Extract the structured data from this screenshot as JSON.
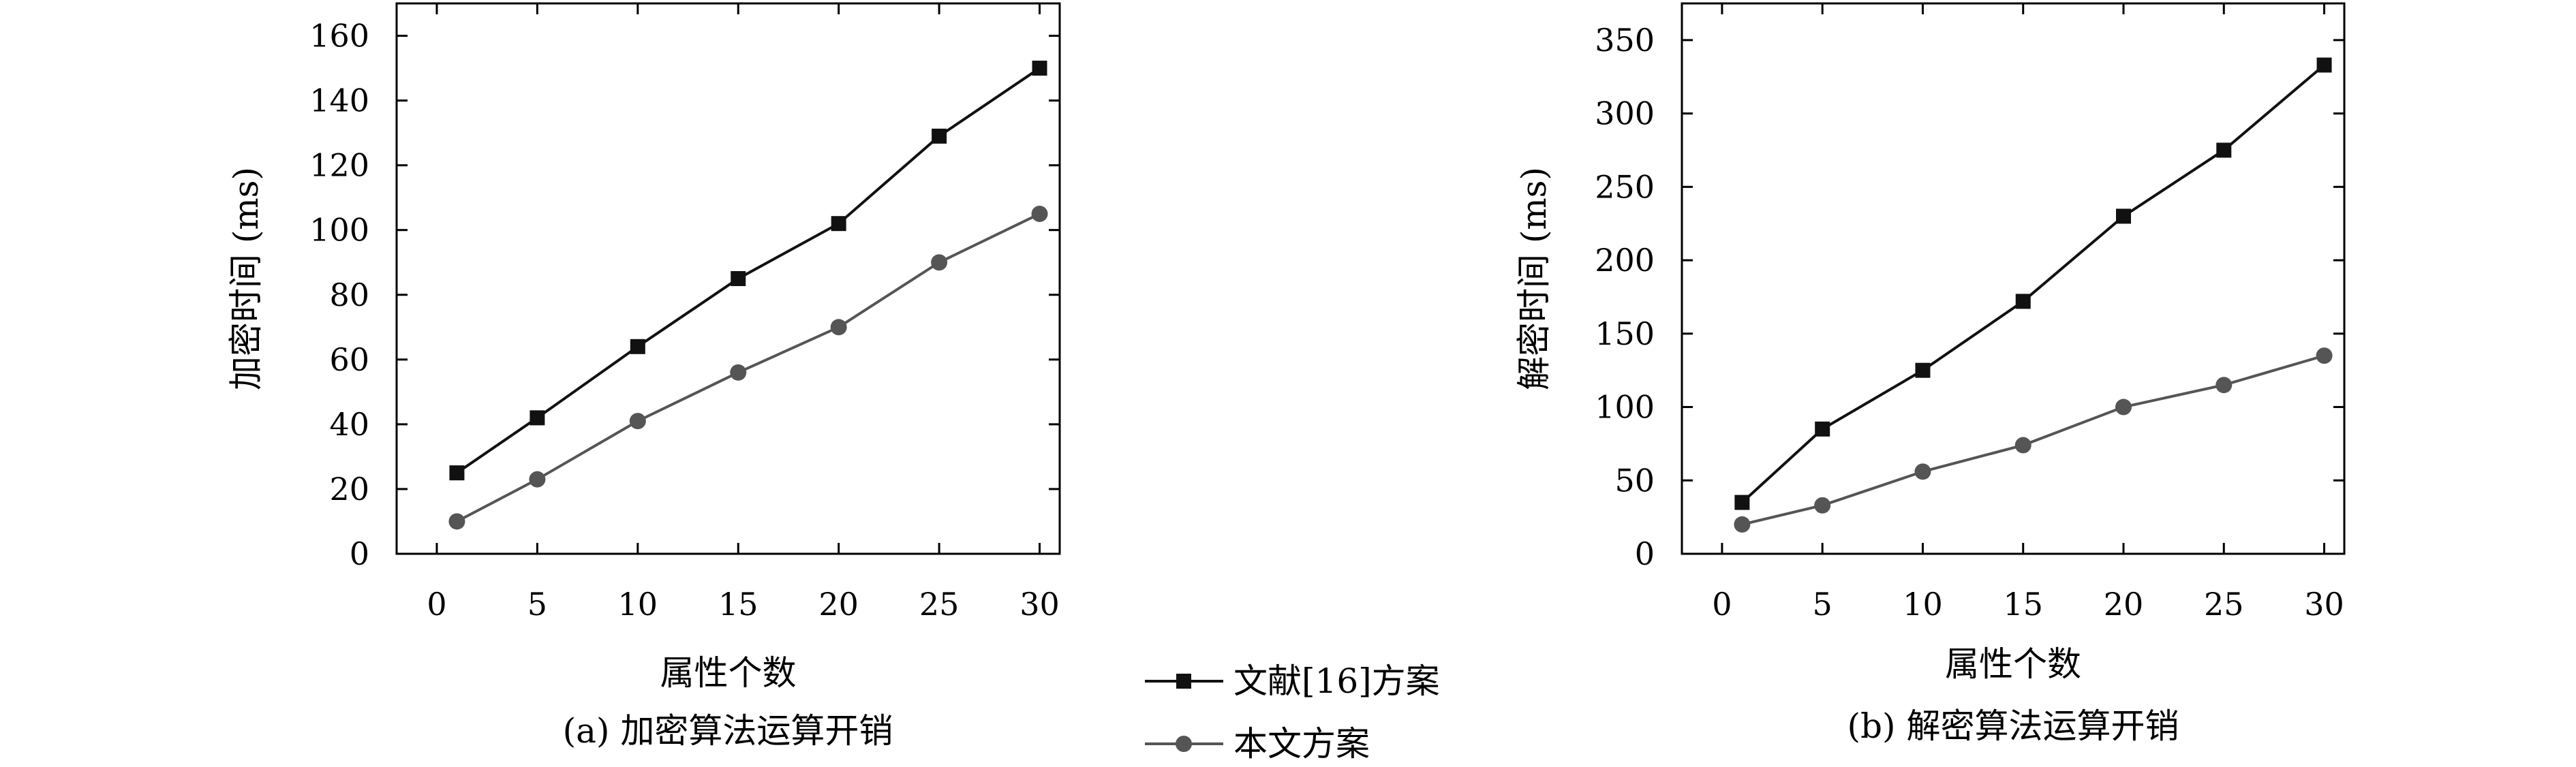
{
  "chart_data": [
    {
      "type": "line",
      "caption": "(a) 加密算法运算开销",
      "xlabel": "属性个数",
      "ylabel": "加密时间 (ms)",
      "xlim": [
        -2,
        31
      ],
      "ylim": [
        0,
        170
      ],
      "xticks": [
        0,
        5,
        10,
        15,
        20,
        25,
        30
      ],
      "yticks": [
        0,
        20,
        40,
        60,
        80,
        100,
        120,
        140,
        160
      ],
      "grid": false,
      "series": [
        {
          "name": "文献[16]方案",
          "marker": "square",
          "color": "#111111",
          "x": [
            1,
            5,
            10,
            15,
            20,
            25,
            30
          ],
          "y": [
            25,
            42,
            64,
            85,
            102,
            129,
            150
          ]
        },
        {
          "name": "本文方案",
          "marker": "circle",
          "color": "#555555",
          "x": [
            1,
            5,
            10,
            15,
            20,
            25,
            30
          ],
          "y": [
            10,
            23,
            41,
            56,
            70,
            90,
            105
          ]
        }
      ]
    },
    {
      "type": "line",
      "caption": "(b) 解密算法运算开销",
      "xlabel": "属性个数",
      "ylabel": "解密时间 (ms)",
      "xlim": [
        -2,
        31
      ],
      "ylim": [
        0,
        375
      ],
      "xticks": [
        0,
        5,
        10,
        15,
        20,
        25,
        30
      ],
      "yticks": [
        0,
        50,
        100,
        150,
        200,
        250,
        300,
        350
      ],
      "grid": false,
      "series": [
        {
          "name": "文献[16]方案",
          "marker": "square",
          "color": "#111111",
          "x": [
            1,
            5,
            10,
            15,
            20,
            25,
            30
          ],
          "y": [
            35,
            85,
            125,
            172,
            230,
            275,
            333
          ]
        },
        {
          "name": "本文方案",
          "marker": "circle",
          "color": "#555555",
          "x": [
            1,
            5,
            10,
            15,
            20,
            25,
            30
          ],
          "y": [
            20,
            33,
            56,
            74,
            100,
            115,
            135
          ]
        }
      ]
    }
  ],
  "legend": {
    "placement": "bottom-center",
    "entries": [
      {
        "label": "文献[16]方案",
        "marker": "square",
        "color": "#111111"
      },
      {
        "label": "本文方案",
        "marker": "circle",
        "color": "#555555"
      }
    ]
  }
}
